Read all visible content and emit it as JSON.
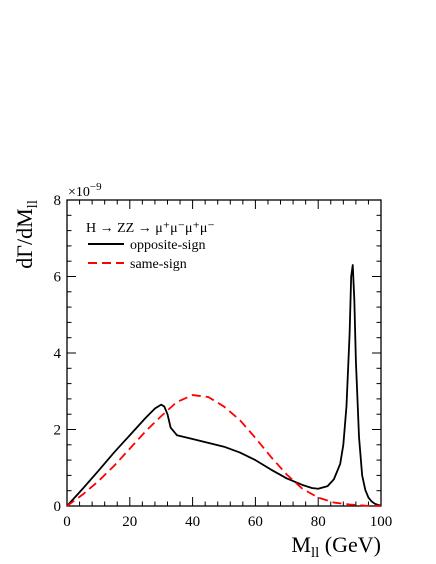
{
  "chart_data": {
    "type": "line",
    "xlabel_main": "M",
    "xlabel_sub": "ll",
    "xlabel_unit": " (GeV)",
    "ylabel_main": "dΓ/dM",
    "ylabel_sub": "ll",
    "y_multiplier": "×10",
    "y_multiplier_exp": "−9",
    "xlim": [
      0,
      100
    ],
    "ylim": [
      0,
      8
    ],
    "x_ticks": [
      0,
      20,
      40,
      60,
      80,
      100
    ],
    "y_ticks": [
      0,
      2,
      4,
      6,
      8
    ],
    "x_tick_labels": [
      "0",
      "20",
      "40",
      "60",
      "80",
      "100"
    ],
    "y_tick_labels": [
      "0",
      "2",
      "4",
      "6",
      "8"
    ],
    "grid": false,
    "legend_placement": "top-left",
    "legend_title": "H → ZZ → μ⁺μ⁻μ⁺μ⁻",
    "series": [
      {
        "name": "opposite-sign",
        "color": "#000000",
        "dash": "solid",
        "x": [
          0,
          5,
          10,
          15,
          20,
          25,
          28,
          30,
          31,
          32,
          33,
          35,
          40,
          45,
          50,
          55,
          60,
          65,
          70,
          75,
          78,
          80,
          83,
          85,
          87,
          88,
          89,
          90,
          90.5,
          91,
          91.5,
          92,
          93,
          94,
          95,
          96,
          97,
          98,
          99,
          100
        ],
        "y": [
          0,
          0.45,
          0.92,
          1.4,
          1.85,
          2.3,
          2.55,
          2.65,
          2.6,
          2.4,
          2.05,
          1.85,
          1.75,
          1.65,
          1.55,
          1.4,
          1.2,
          0.95,
          0.72,
          0.55,
          0.47,
          0.45,
          0.52,
          0.7,
          1.1,
          1.6,
          2.6,
          4.5,
          6.0,
          6.3,
          5.4,
          3.8,
          1.8,
          0.8,
          0.42,
          0.22,
          0.12,
          0.06,
          0.03,
          0.01
        ]
      },
      {
        "name": "same-sign",
        "color": "#ff0000",
        "dash": "dashed",
        "x": [
          0,
          5,
          10,
          15,
          20,
          25,
          30,
          35,
          40,
          45,
          50,
          55,
          60,
          65,
          70,
          75,
          80,
          85,
          90,
          95,
          100
        ],
        "y": [
          0,
          0.3,
          0.65,
          1.05,
          1.5,
          1.95,
          2.35,
          2.72,
          2.9,
          2.85,
          2.6,
          2.25,
          1.78,
          1.28,
          0.82,
          0.45,
          0.22,
          0.09,
          0.04,
          0.01,
          0.0
        ]
      }
    ]
  }
}
